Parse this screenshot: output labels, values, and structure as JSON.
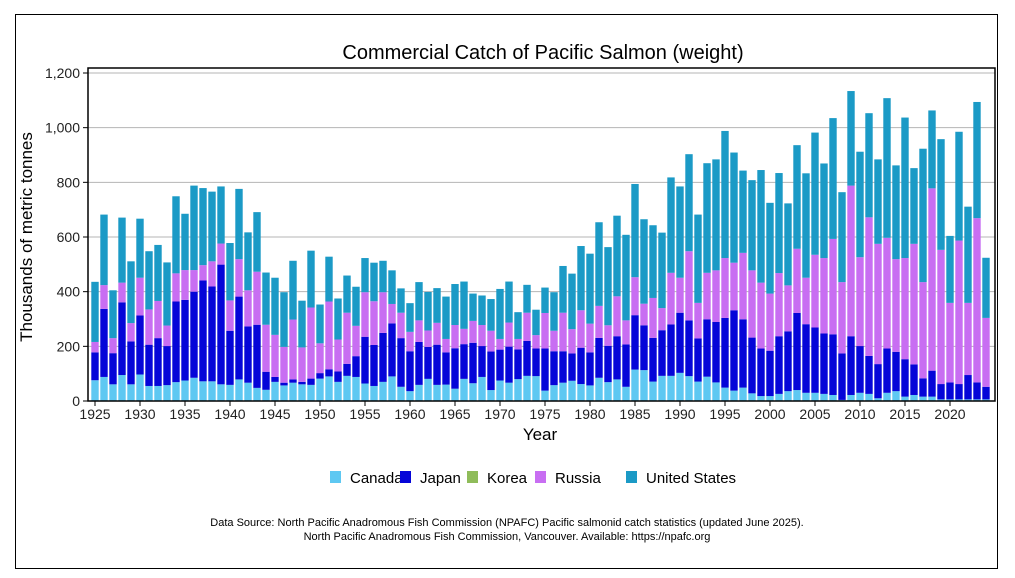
{
  "chart_data": {
    "type": "bar",
    "stacked": true,
    "title": "Commercial Catch of Pacific Salmon (weight)",
    "xlabel": "Year",
    "ylabel": "Thousands of metric tonnes",
    "ylim": [
      0,
      1200
    ],
    "yticks": [
      "0",
      "200",
      "400",
      "600",
      "800",
      "1,000",
      "1,200"
    ],
    "xticks": [
      "1925",
      "1930",
      "1935",
      "1940",
      "1945",
      "1950",
      "1955",
      "1960",
      "1965",
      "1970",
      "1975",
      "1980",
      "1985",
      "1990",
      "1995",
      "2000",
      "2005",
      "2010",
      "2015",
      "2020"
    ],
    "grid": "horizontal",
    "legend": "bottom",
    "x_start": 1925,
    "x_end": 2024,
    "series": [
      {
        "name": "Canada",
        "color": "#5ec8f2",
        "values": [
          76,
          88,
          61,
          95,
          61,
          97,
          55,
          55,
          58,
          69,
          75,
          85,
          72,
          72,
          61,
          59,
          79,
          67,
          48,
          41,
          70,
          57,
          67,
          61,
          59,
          82,
          90,
          70,
          92,
          88,
          64,
          55,
          70,
          90,
          52,
          36,
          59,
          81,
          59,
          60,
          45,
          81,
          65,
          88,
          40,
          75,
          67,
          80,
          92,
          91,
          38,
          58,
          67,
          74,
          62,
          57,
          85,
          69,
          79,
          52,
          115,
          113,
          71,
          92,
          92,
          103,
          91,
          71,
          89,
          68,
          49,
          38,
          49,
          28,
          18,
          18,
          26,
          36,
          40,
          30,
          30,
          26,
          22,
          4,
          22,
          30,
          26,
          10,
          30,
          36,
          16,
          22,
          16,
          16,
          6,
          6,
          6,
          6,
          6,
          6
        ]
      },
      {
        "name": "Japan",
        "color": "#0505d8",
        "values": [
          102,
          249,
          114,
          266,
          157,
          216,
          151,
          175,
          143,
          295,
          295,
          315,
          369,
          347,
          438,
          198,
          303,
          206,
          231,
          66,
          18,
          10,
          12,
          9,
          23,
          20,
          26,
          38,
          44,
          76,
          171,
          150,
          179,
          194,
          178,
          146,
          157,
          117,
          147,
          118,
          148,
          127,
          148,
          113,
          141,
          113,
          132,
          109,
          128,
          101,
          154,
          124,
          115,
          100,
          133,
          121,
          146,
          133,
          158,
          155,
          199,
          164,
          160,
          167,
          188,
          220,
          204,
          158,
          210,
          221,
          255,
          294,
          250,
          204,
          174,
          166,
          211,
          219,
          282,
          251,
          239,
          221,
          222,
          170,
          215,
          171,
          139,
          125,
          162,
          144,
          137,
          112,
          67,
          95,
          56,
          62,
          56,
          89,
          62,
          46
        ]
      },
      {
        "name": "Korea",
        "color": "#8fbc5a",
        "values": [
          0,
          0,
          0,
          0,
          0,
          0,
          0,
          0,
          0,
          0,
          0,
          0,
          0,
          0,
          0,
          0,
          0,
          0,
          0,
          0,
          0,
          0,
          0,
          0,
          0,
          0,
          0,
          0,
          0,
          0,
          0,
          0,
          0,
          0,
          0,
          0,
          0,
          0,
          0,
          0,
          0,
          0,
          0,
          0,
          0,
          0,
          0,
          0,
          0,
          0,
          0,
          0,
          0,
          0,
          0,
          0,
          0,
          0,
          0,
          0,
          0,
          0,
          0,
          0,
          0,
          0,
          0,
          0,
          0,
          0,
          0,
          0,
          0,
          0,
          0,
          0,
          0,
          0,
          0,
          0,
          0,
          0,
          0,
          0,
          0,
          0,
          0,
          0,
          0,
          0,
          0,
          0,
          0,
          0,
          0,
          0,
          0,
          0,
          0,
          0
        ]
      },
      {
        "name": "Russia",
        "color": "#c86ef2",
        "values": [
          38,
          87,
          55,
          72,
          67,
          138,
          129,
          136,
          75,
          103,
          109,
          79,
          56,
          92,
          77,
          111,
          137,
          132,
          194,
          172,
          154,
          131,
          219,
          126,
          260,
          109,
          248,
          117,
          187,
          111,
          163,
          160,
          149,
          71,
          93,
          71,
          79,
          60,
          80,
          49,
          85,
          56,
          80,
          77,
          76,
          39,
          88,
          38,
          103,
          49,
          130,
          75,
          141,
          89,
          137,
          105,
          117,
          75,
          146,
          88,
          139,
          79,
          146,
          81,
          189,
          128,
          253,
          130,
          170,
          189,
          219,
          174,
          243,
          246,
          241,
          209,
          231,
          168,
          235,
          170,
          266,
          276,
          349,
          261,
          551,
          325,
          507,
          440,
          405,
          339,
          370,
          441,
          352,
          667,
          491,
          291,
          525,
          264,
          601,
          252
        ]
      },
      {
        "name": "United States",
        "color": "#1b9ac6",
        "values": [
          220,
          258,
          175,
          238,
          226,
          216,
          213,
          205,
          231,
          282,
          206,
          309,
          282,
          255,
          209,
          210,
          257,
          212,
          218,
          191,
          209,
          200,
          215,
          171,
          208,
          142,
          164,
          150,
          136,
          143,
          125,
          141,
          115,
          123,
          89,
          105,
          140,
          141,
          127,
          155,
          150,
          173,
          100,
          108,
          116,
          183,
          150,
          98,
          102,
          93,
          93,
          141,
          171,
          203,
          235,
          256,
          306,
          286,
          295,
          313,
          341,
          309,
          266,
          276,
          349,
          334,
          355,
          323,
          401,
          406,
          465,
          403,
          301,
          330,
          412,
          332,
          366,
          300,
          379,
          382,
          447,
          346,
          442,
          329,
          346,
          386,
          381,
          309,
          511,
          343,
          514,
          277,
          488,
          285,
          405,
          245,
          398,
          352,
          425,
          220
        ]
      }
    ]
  },
  "source": {
    "line1": "Data Source: North Pacific Anadromous Fish Commission (NPAFC) Pacific salmonid catch statistics (updated June 2025).",
    "line2": "North Pacific Anadromous Fish Commission, Vancouver. Available: https://npafc.org"
  }
}
